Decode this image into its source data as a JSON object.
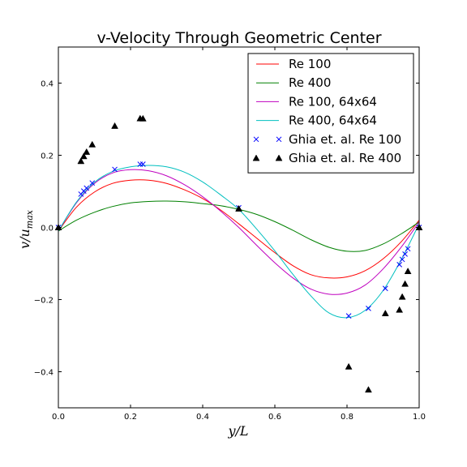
{
  "chart_data": {
    "type": "line",
    "title": "v-Velocity Through Geometric Center",
    "xlabel": "y/L",
    "ylabel": "v/u_max",
    "xlim": [
      0,
      1
    ],
    "ylim": [
      -0.5,
      0.5
    ],
    "xticks": [
      "0.0",
      "0.2",
      "0.4",
      "0.6",
      "0.8",
      "1.0"
    ],
    "yticks": [
      "−0.4",
      "−0.2",
      "0.0",
      "0.2",
      "0.4"
    ],
    "grid": false,
    "legend_position": "top-right",
    "series": [
      {
        "name": "Re 100",
        "color": "#ff0000",
        "style": "line",
        "x": [
          0,
          0.05,
          0.1,
          0.15,
          0.2,
          0.25,
          0.3,
          0.35,
          0.4,
          0.45,
          0.5,
          0.55,
          0.6,
          0.65,
          0.7,
          0.75,
          0.8,
          0.85,
          0.9,
          0.95,
          1.0
        ],
        "y": [
          -0.01,
          0.056,
          0.098,
          0.122,
          0.131,
          0.131,
          0.122,
          0.104,
          0.08,
          0.048,
          0.01,
          -0.03,
          -0.07,
          -0.106,
          -0.131,
          -0.14,
          -0.137,
          -0.12,
          -0.087,
          -0.04,
          0.02
        ]
      },
      {
        "name": "Re 400",
        "color": "#008000",
        "style": "line",
        "x": [
          0,
          0.05,
          0.1,
          0.15,
          0.2,
          0.25,
          0.3,
          0.35,
          0.4,
          0.45,
          0.5,
          0.55,
          0.6,
          0.65,
          0.7,
          0.75,
          0.8,
          0.85,
          0.9,
          0.95,
          1.0
        ],
        "y": [
          -0.01,
          0.02,
          0.042,
          0.058,
          0.068,
          0.072,
          0.073,
          0.071,
          0.066,
          0.06,
          0.05,
          0.036,
          0.016,
          -0.008,
          -0.034,
          -0.055,
          -0.066,
          -0.064,
          -0.046,
          -0.018,
          0.015
        ]
      },
      {
        "name": "Re 100, 64x64",
        "color": "#bf00bf",
        "style": "line",
        "x": [
          0,
          0.05,
          0.1,
          0.15,
          0.2,
          0.25,
          0.3,
          0.35,
          0.4,
          0.45,
          0.5,
          0.55,
          0.6,
          0.65,
          0.7,
          0.75,
          0.8,
          0.85,
          0.9,
          0.95,
          1.0
        ],
        "y": [
          -0.01,
          0.068,
          0.122,
          0.151,
          0.16,
          0.157,
          0.143,
          0.118,
          0.085,
          0.045,
          0.0,
          -0.05,
          -0.098,
          -0.14,
          -0.171,
          -0.185,
          -0.182,
          -0.16,
          -0.115,
          -0.055,
          0.015
        ]
      },
      {
        "name": "Re 400, 64x64",
        "color": "#00bfbf",
        "style": "line",
        "x": [
          0,
          0.05,
          0.1,
          0.15,
          0.2,
          0.25,
          0.3,
          0.35,
          0.4,
          0.45,
          0.5,
          0.55,
          0.6,
          0.65,
          0.7,
          0.75,
          0.8,
          0.85,
          0.9,
          0.95,
          1.0
        ],
        "y": [
          -0.01,
          0.07,
          0.125,
          0.155,
          0.168,
          0.172,
          0.168,
          0.153,
          0.126,
          0.09,
          0.05,
          -0.005,
          -0.065,
          -0.13,
          -0.19,
          -0.237,
          -0.25,
          -0.23,
          -0.175,
          -0.09,
          0.01
        ]
      },
      {
        "name": "Ghia et. al. Re 100",
        "color": "#0000ff",
        "style": "marker-x",
        "x": [
          0.0,
          0.0625,
          0.0703,
          0.0781,
          0.0938,
          0.1563,
          0.2266,
          0.2344,
          0.5,
          0.8047,
          0.8594,
          0.9063,
          0.9453,
          0.9531,
          0.9609,
          0.9688,
          1.0
        ],
        "y": [
          0.0,
          0.0923,
          0.1009,
          0.1089,
          0.1232,
          0.1608,
          0.1751,
          0.1753,
          0.0545,
          -0.2453,
          -0.2245,
          -0.1691,
          -0.1031,
          -0.0886,
          -0.0739,
          -0.0591,
          0.0
        ]
      },
      {
        "name": "Ghia et. al. Re 400",
        "color": "#000000",
        "style": "marker-triangle",
        "x": [
          0.0,
          0.0625,
          0.0703,
          0.0781,
          0.0938,
          0.1563,
          0.2266,
          0.2344,
          0.5,
          0.8047,
          0.8594,
          0.9063,
          0.9453,
          0.9531,
          0.9609,
          0.9688,
          1.0
        ],
        "y": [
          0.0,
          0.1836,
          0.1971,
          0.2092,
          0.2297,
          0.2812,
          0.302,
          0.3017,
          0.0519,
          -0.386,
          -0.4499,
          -0.2383,
          -0.2285,
          -0.1925,
          -0.1566,
          -0.1215,
          0.0
        ]
      }
    ]
  }
}
